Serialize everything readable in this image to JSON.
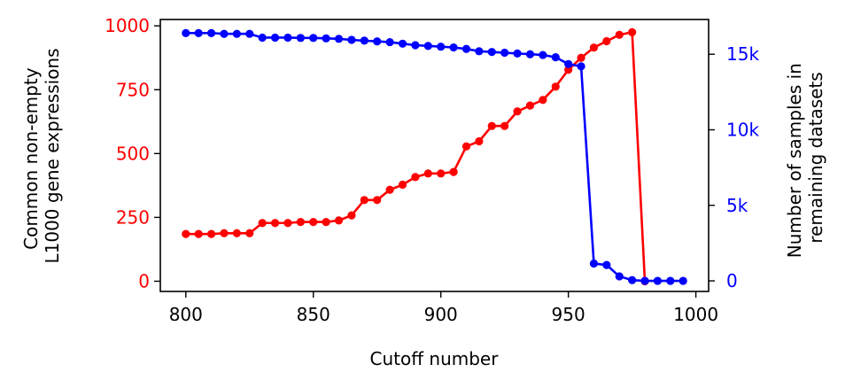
{
  "chart_data": {
    "type": "line",
    "xlabel": "Cutoff number",
    "xlim": [
      790,
      1005
    ],
    "x_ticks": [
      800,
      850,
      900,
      950,
      1000
    ],
    "x_tick_labels": [
      "800",
      "850",
      "900",
      "950",
      "1000"
    ],
    "left_axis": {
      "label_lines": [
        "Common non-empty",
        "L1000 gene expressions"
      ],
      "ylim": [
        -40,
        1025
      ],
      "ticks": [
        0,
        250,
        500,
        750,
        1000
      ],
      "tick_labels": [
        "0",
        "250",
        "500",
        "750",
        "1000"
      ],
      "color": "#ff0000"
    },
    "right_axis": {
      "label_lines": [
        "Number of samples in",
        "remaining datasets"
      ],
      "ylim": [
        -700,
        17300
      ],
      "ticks": [
        0,
        5000,
        10000,
        15000
      ],
      "tick_labels": [
        "0",
        "5k",
        "10k",
        "15k"
      ],
      "color": "#0000ff"
    },
    "x": [
      800,
      805,
      810,
      815,
      820,
      825,
      830,
      835,
      840,
      845,
      850,
      855,
      860,
      865,
      870,
      875,
      880,
      885,
      890,
      895,
      900,
      905,
      910,
      915,
      920,
      925,
      930,
      935,
      940,
      945,
      950,
      955,
      960,
      965,
      970,
      975,
      980,
      985,
      990,
      995
    ],
    "series": [
      {
        "axis": "left",
        "color": "#ff0000",
        "values": [
          185,
          185,
          185,
          188,
          188,
          188,
          228,
          228,
          228,
          232,
          232,
          232,
          238,
          258,
          318,
          318,
          358,
          378,
          408,
          422,
          422,
          428,
          528,
          548,
          608,
          608,
          665,
          688,
          710,
          762,
          828,
          875,
          915,
          940,
          965,
          975,
          0,
          null,
          null,
          null
        ]
      },
      {
        "axis": "right",
        "color": "#0000ff",
        "values": [
          16400,
          16400,
          16400,
          16350,
          16350,
          16350,
          16100,
          16100,
          16100,
          16080,
          16080,
          16050,
          16020,
          15950,
          15900,
          15850,
          15800,
          15700,
          15600,
          15550,
          15500,
          15450,
          15350,
          15200,
          15150,
          15100,
          15050,
          15000,
          14950,
          14800,
          14350,
          14200,
          1150,
          1050,
          300,
          50,
          0,
          0,
          0,
          0
        ]
      }
    ]
  }
}
